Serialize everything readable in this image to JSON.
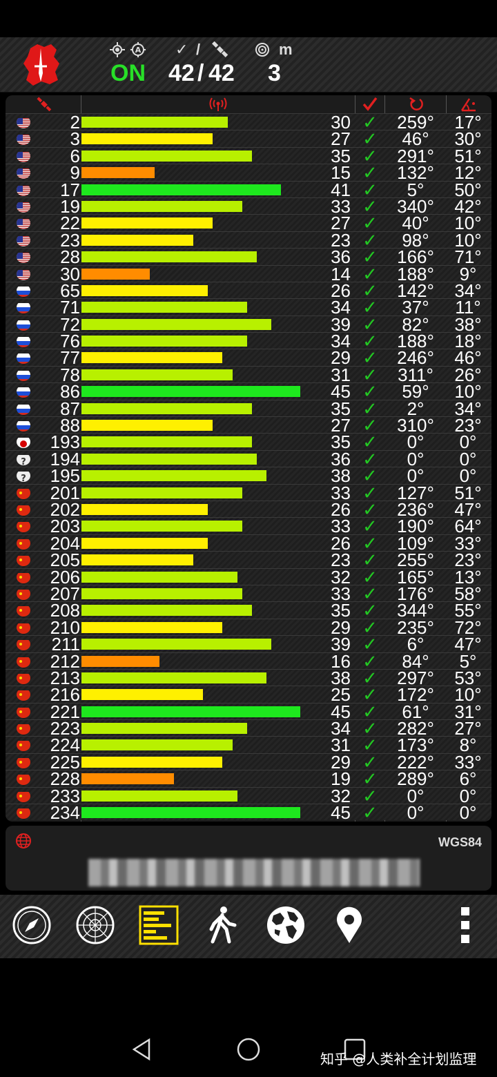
{
  "header": {
    "fix_status": "ON",
    "satellites_used": "42",
    "separator": "/",
    "satellites_visible": "42",
    "accuracy": "3",
    "accuracy_unit": "m",
    "icons": [
      "gps-fix-icon",
      "check-icon",
      "satellite-icon",
      "accuracy-target-icon"
    ]
  },
  "table": {
    "columns": [
      "satellite-id",
      "signal-strength",
      "snr",
      "used-in-fix",
      "azimuth",
      "elevation"
    ],
    "rows": [
      {
        "flag": "us",
        "id": "2",
        "snr": "30",
        "used": "✓",
        "azimuth": "259°",
        "elevation": "17°"
      },
      {
        "flag": "us",
        "id": "3",
        "snr": "27",
        "used": "✓",
        "azimuth": "46°",
        "elevation": "30°"
      },
      {
        "flag": "us",
        "id": "6",
        "snr": "35",
        "used": "✓",
        "azimuth": "291°",
        "elevation": "51°"
      },
      {
        "flag": "us",
        "id": "9",
        "snr": "15",
        "used": "✓",
        "azimuth": "132°",
        "elevation": "12°"
      },
      {
        "flag": "us",
        "id": "17",
        "snr": "41",
        "used": "✓",
        "azimuth": "5°",
        "elevation": "50°"
      },
      {
        "flag": "us",
        "id": "19",
        "snr": "33",
        "used": "✓",
        "azimuth": "340°",
        "elevation": "42°"
      },
      {
        "flag": "us",
        "id": "22",
        "snr": "27",
        "used": "✓",
        "azimuth": "40°",
        "elevation": "10°"
      },
      {
        "flag": "us",
        "id": "23",
        "snr": "23",
        "used": "✓",
        "azimuth": "98°",
        "elevation": "10°"
      },
      {
        "flag": "us",
        "id": "28",
        "snr": "36",
        "used": "✓",
        "azimuth": "166°",
        "elevation": "71°"
      },
      {
        "flag": "us",
        "id": "30",
        "snr": "14",
        "used": "✓",
        "azimuth": "188°",
        "elevation": "9°"
      },
      {
        "flag": "ru",
        "id": "65",
        "snr": "26",
        "used": "✓",
        "azimuth": "142°",
        "elevation": "34°"
      },
      {
        "flag": "ru",
        "id": "71",
        "snr": "34",
        "used": "✓",
        "azimuth": "37°",
        "elevation": "11°"
      },
      {
        "flag": "ru",
        "id": "72",
        "snr": "39",
        "used": "✓",
        "azimuth": "82°",
        "elevation": "38°"
      },
      {
        "flag": "ru",
        "id": "76",
        "snr": "34",
        "used": "✓",
        "azimuth": "188°",
        "elevation": "18°"
      },
      {
        "flag": "ru",
        "id": "77",
        "snr": "29",
        "used": "✓",
        "azimuth": "246°",
        "elevation": "46°"
      },
      {
        "flag": "ru",
        "id": "78",
        "snr": "31",
        "used": "✓",
        "azimuth": "311°",
        "elevation": "26°"
      },
      {
        "flag": "ru",
        "id": "86",
        "snr": "45",
        "used": "✓",
        "azimuth": "59°",
        "elevation": "10°"
      },
      {
        "flag": "ru",
        "id": "87",
        "snr": "35",
        "used": "✓",
        "azimuth": "2°",
        "elevation": "34°"
      },
      {
        "flag": "ru",
        "id": "88",
        "snr": "27",
        "used": "✓",
        "azimuth": "310°",
        "elevation": "23°"
      },
      {
        "flag": "jp",
        "id": "193",
        "snr": "35",
        "used": "✓",
        "azimuth": "0°",
        "elevation": "0°"
      },
      {
        "flag": "unknown",
        "id": "194",
        "snr": "36",
        "used": "✓",
        "azimuth": "0°",
        "elevation": "0°"
      },
      {
        "flag": "unknown",
        "id": "195",
        "snr": "38",
        "used": "✓",
        "azimuth": "0°",
        "elevation": "0°"
      },
      {
        "flag": "cn",
        "id": "201",
        "snr": "33",
        "used": "✓",
        "azimuth": "127°",
        "elevation": "51°"
      },
      {
        "flag": "cn",
        "id": "202",
        "snr": "26",
        "used": "✓",
        "azimuth": "236°",
        "elevation": "47°"
      },
      {
        "flag": "cn",
        "id": "203",
        "snr": "33",
        "used": "✓",
        "azimuth": "190°",
        "elevation": "64°"
      },
      {
        "flag": "cn",
        "id": "204",
        "snr": "26",
        "used": "✓",
        "azimuth": "109°",
        "elevation": "33°"
      },
      {
        "flag": "cn",
        "id": "205",
        "snr": "23",
        "used": "✓",
        "azimuth": "255°",
        "elevation": "23°"
      },
      {
        "flag": "cn",
        "id": "206",
        "snr": "32",
        "used": "✓",
        "azimuth": "165°",
        "elevation": "13°"
      },
      {
        "flag": "cn",
        "id": "207",
        "snr": "33",
        "used": "✓",
        "azimuth": "176°",
        "elevation": "58°"
      },
      {
        "flag": "cn",
        "id": "208",
        "snr": "35",
        "used": "✓",
        "azimuth": "344°",
        "elevation": "55°"
      },
      {
        "flag": "cn",
        "id": "210",
        "snr": "29",
        "used": "✓",
        "azimuth": "235°",
        "elevation": "72°"
      },
      {
        "flag": "cn",
        "id": "211",
        "snr": "39",
        "used": "✓",
        "azimuth": "6°",
        "elevation": "47°"
      },
      {
        "flag": "cn",
        "id": "212",
        "snr": "16",
        "used": "✓",
        "azimuth": "84°",
        "elevation": "5°"
      },
      {
        "flag": "cn",
        "id": "213",
        "snr": "38",
        "used": "✓",
        "azimuth": "297°",
        "elevation": "53°"
      },
      {
        "flag": "cn",
        "id": "216",
        "snr": "25",
        "used": "✓",
        "azimuth": "172°",
        "elevation": "10°"
      },
      {
        "flag": "cn",
        "id": "221",
        "snr": "45",
        "used": "✓",
        "azimuth": "61°",
        "elevation": "31°"
      },
      {
        "flag": "cn",
        "id": "223",
        "snr": "34",
        "used": "✓",
        "azimuth": "282°",
        "elevation": "27°"
      },
      {
        "flag": "cn",
        "id": "224",
        "snr": "31",
        "used": "✓",
        "azimuth": "173°",
        "elevation": "8°"
      },
      {
        "flag": "cn",
        "id": "225",
        "snr": "29",
        "used": "✓",
        "azimuth": "222°",
        "elevation": "33°"
      },
      {
        "flag": "cn",
        "id": "228",
        "snr": "19",
        "used": "✓",
        "azimuth": "289°",
        "elevation": "6°"
      },
      {
        "flag": "cn",
        "id": "233",
        "snr": "32",
        "used": "✓",
        "azimuth": "0°",
        "elevation": "0°"
      },
      {
        "flag": "cn",
        "id": "234",
        "snr": "45",
        "used": "✓",
        "azimuth": "0°",
        "elevation": "0°"
      }
    ]
  },
  "colors": {
    "strong": "#1ee81e",
    "good": "#b8f000",
    "fair": "#fff000",
    "weak": "#ff8c00",
    "check": "#23c823",
    "header_icon_red": "#e02020"
  },
  "location": {
    "datum": "WGS84"
  },
  "toolbar": {
    "items": [
      "compass-icon",
      "radar-icon",
      "signal-bars-icon",
      "walk-icon",
      "globe-icon",
      "map-pin-icon",
      "more-icon"
    ],
    "active_item": "signal-bars-icon"
  },
  "watermark": "知乎 @人类补全计划监理"
}
